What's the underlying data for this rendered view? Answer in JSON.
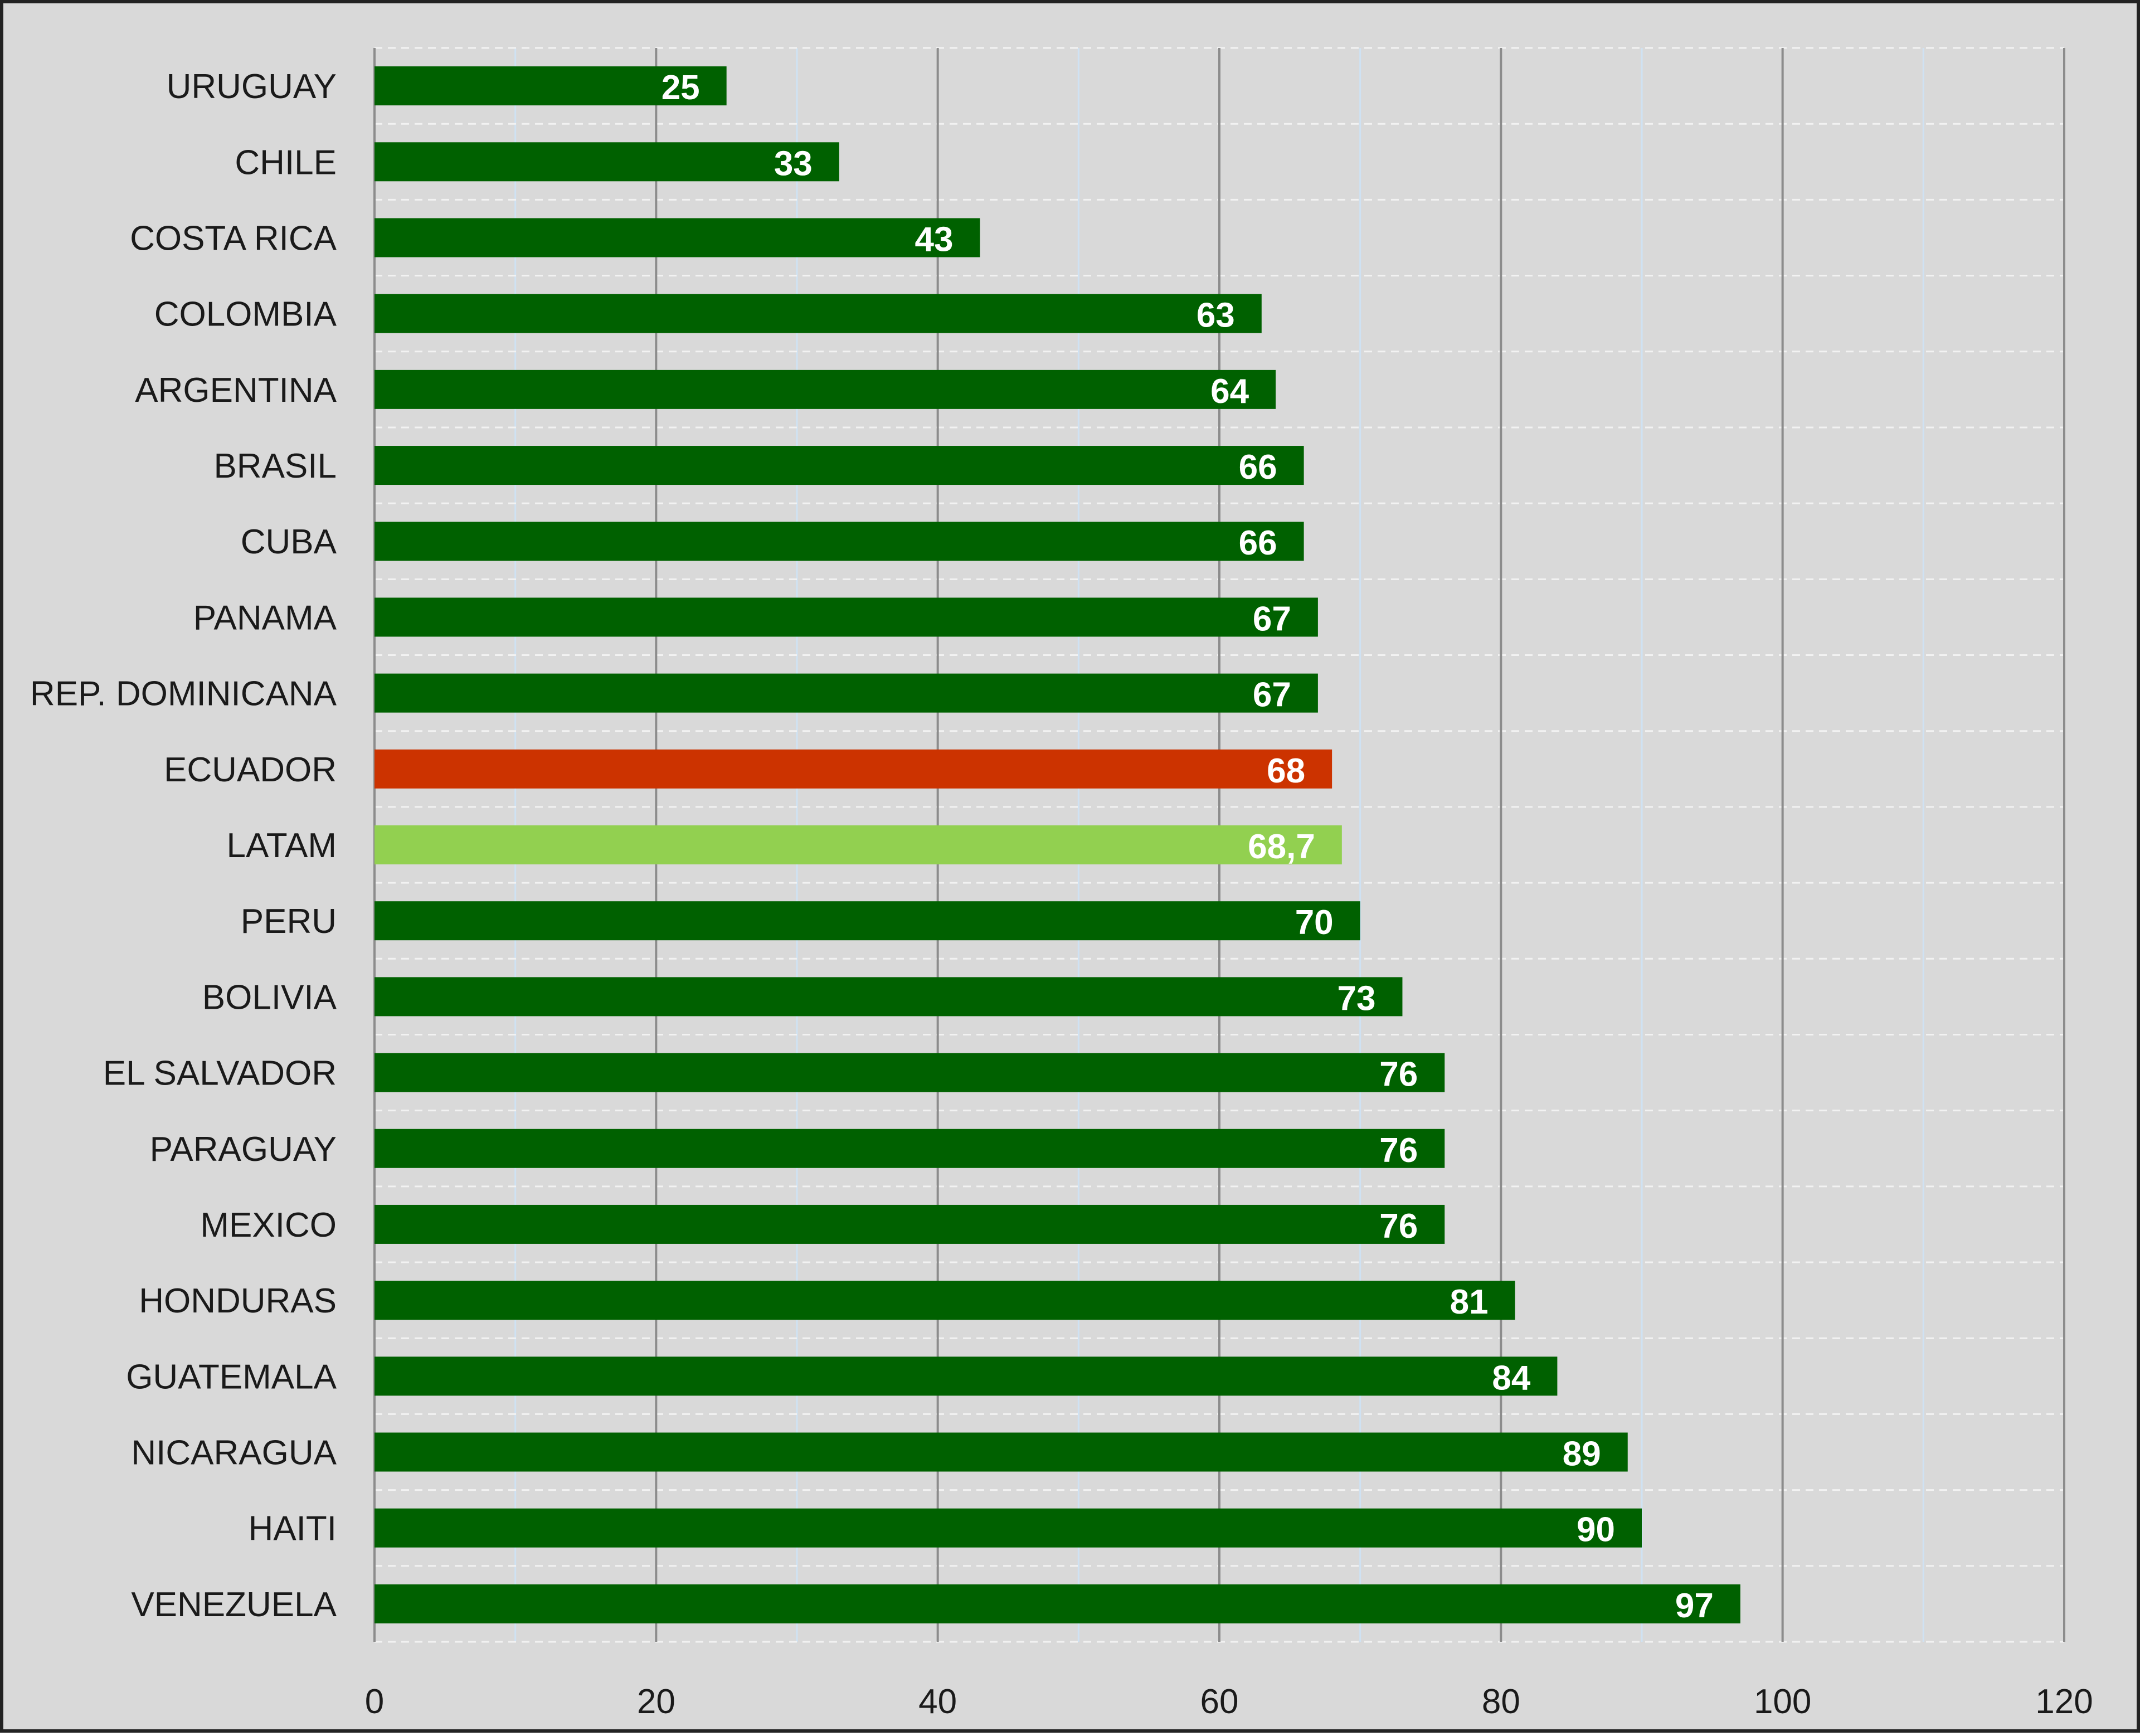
{
  "chart_data": {
    "type": "bar",
    "orientation": "horizontal",
    "categories": [
      "URUGUAY",
      "CHILE",
      "COSTA RICA",
      "COLOMBIA",
      "ARGENTINA",
      "BRASIL",
      "CUBA",
      "PANAMA",
      "REP. DOMINICANA",
      "ECUADOR",
      "LATAM",
      "PERU",
      "BOLIVIA",
      "EL SALVADOR",
      "PARAGUAY",
      "MEXICO",
      "HONDURAS",
      "GUATEMALA",
      "NICARAGUA",
      "HAITI",
      "VENEZUELA"
    ],
    "values": [
      25,
      33,
      43,
      63,
      64,
      66,
      66,
      67,
      67,
      68,
      68.7,
      70,
      73,
      76,
      76,
      76,
      81,
      84,
      89,
      90,
      97
    ],
    "value_labels": [
      "25",
      "33",
      "43",
      "63",
      "64",
      "66",
      "66",
      "67",
      "67",
      "68",
      "68,7",
      "70",
      "73",
      "76",
      "76",
      "76",
      "81",
      "84",
      "89",
      "90",
      "97"
    ],
    "xlim": [
      0,
      120
    ],
    "x_ticks": [
      "0",
      "20",
      "40",
      "60",
      "80",
      "100",
      "120"
    ],
    "title": "",
    "xlabel": "",
    "ylabel": "",
    "grid": true,
    "legend": "none",
    "colors": {
      "default": "#006100",
      "highlight": "#cc3300",
      "average": "#92d050",
      "background": "#d9d9d9",
      "major_grid": "#8c8c8c",
      "minor_grid": "#cfe2f3"
    },
    "highlight_categories": {
      "ECUADOR": "highlight",
      "LATAM": "average"
    }
  }
}
